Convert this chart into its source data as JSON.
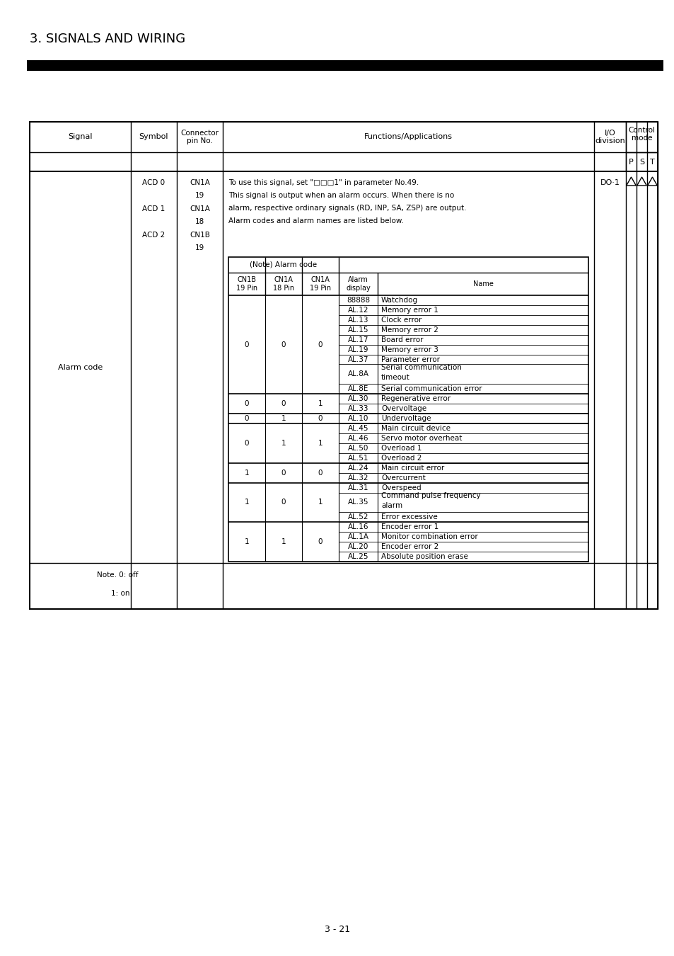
{
  "title": "3. SIGNALS AND WIRING",
  "page_number": "3 - 21",
  "pst_labels": [
    "P",
    "S",
    "T"
  ],
  "signal": "Alarm code",
  "symbols": [
    [
      "ACD 0",
      "CN1A",
      "19"
    ],
    [
      "ACD 1",
      "CN1A",
      "18"
    ],
    [
      "ACD 2",
      "CN1B",
      "19"
    ]
  ],
  "io_division": "DO·1",
  "intro_text": [
    "To use this signal, set \"□□□1\" in parameter No.49.",
    "This signal is output when an alarm occurs. When there is no",
    "alarm, respective ordinary signals (RD, INP, SA, ZSP) are output.",
    "Alarm codes and alarm names are listed below."
  ],
  "col_headers": [
    "CN1B\n19 Pin",
    "CN1A\n18 Pin",
    "CN1A\n19 Pin",
    "Alarm\ndisplay",
    "Name"
  ],
  "alarm_groups": [
    {
      "cn1b": "0",
      "cn1a18": "0",
      "cn1a19": "0",
      "alarms": [
        [
          "88888",
          "Watchdog"
        ],
        [
          "AL.12",
          "Memory error 1"
        ],
        [
          "AL.13",
          "Clock error"
        ],
        [
          "AL.15",
          "Memory error 2"
        ],
        [
          "AL.17",
          "Board error"
        ],
        [
          "AL.19",
          "Memory error 3"
        ],
        [
          "AL.37",
          "Parameter error"
        ],
        [
          "AL.8A",
          "Serial communication\ntimeout"
        ],
        [
          "AL.8E",
          "Serial communication error"
        ]
      ]
    },
    {
      "cn1b": "0",
      "cn1a18": "0",
      "cn1a19": "1",
      "alarms": [
        [
          "AL.30",
          "Regenerative error"
        ],
        [
          "AL.33",
          "Overvoltage"
        ]
      ]
    },
    {
      "cn1b": "0",
      "cn1a18": "1",
      "cn1a19": "0",
      "alarms": [
        [
          "AL.10",
          "Undervoltage"
        ]
      ]
    },
    {
      "cn1b": "0",
      "cn1a18": "1",
      "cn1a19": "1",
      "alarms": [
        [
          "AL.45",
          "Main circuit device"
        ],
        [
          "AL.46",
          "Servo motor overheat"
        ],
        [
          "AL.50",
          "Overload 1"
        ],
        [
          "AL.51",
          "Overload 2"
        ]
      ]
    },
    {
      "cn1b": "1",
      "cn1a18": "0",
      "cn1a19": "0",
      "alarms": [
        [
          "AL.24",
          "Main circuit error"
        ],
        [
          "AL.32",
          "Overcurrent"
        ]
      ]
    },
    {
      "cn1b": "1",
      "cn1a18": "0",
      "cn1a19": "1",
      "alarms": [
        [
          "AL.31",
          "Overspeed"
        ],
        [
          "AL.35",
          "Command pulse frequency\nalarm"
        ],
        [
          "AL.52",
          "Error excessive"
        ]
      ]
    },
    {
      "cn1b": "1",
      "cn1a18": "1",
      "cn1a19": "0",
      "alarms": [
        [
          "AL.16",
          "Encoder error 1"
        ],
        [
          "AL.1A",
          "Monitor combination error"
        ],
        [
          "AL.20",
          "Encoder error 2"
        ],
        [
          "AL.25",
          "Absolute position erase"
        ]
      ]
    }
  ],
  "bg_color": "#ffffff",
  "text_color": "#000000",
  "line_color": "#000000"
}
